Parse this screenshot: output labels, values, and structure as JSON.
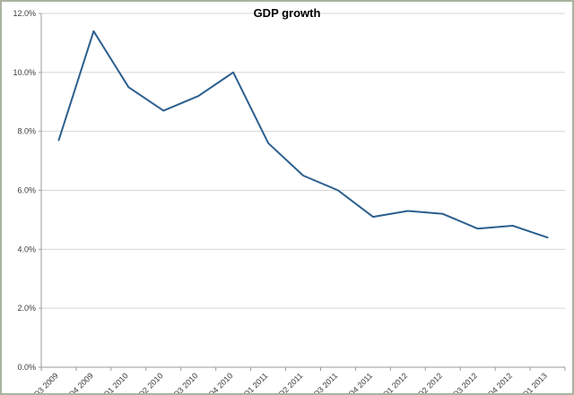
{
  "chart": {
    "title": "GDP growth"
  },
  "colors": {
    "line": "#2c5f8e",
    "frame": "#a9b3a0",
    "grid": "#d6d6d6",
    "axis": "#9b9b9b",
    "tick": "#9b9b9b",
    "label": "#3b3b3b"
  },
  "chart_data": {
    "type": "line",
    "title": "GDP growth",
    "categories": [
      "Q3 2009",
      "Q4 2009",
      "Q1 2010",
      "Q2 2010",
      "Q3 2010",
      "Q4 2010",
      "Q1 2011",
      "Q2 2011",
      "Q3 2011",
      "Q4 2011",
      "Q1 2012",
      "Q2 2012",
      "Q3 2012",
      "Q4 2012",
      "Q1 2013"
    ],
    "series": [
      {
        "name": "GDP growth",
        "values": [
          7.7,
          11.4,
          9.5,
          8.7,
          9.2,
          10.0,
          7.6,
          6.5,
          6.0,
          5.1,
          5.3,
          5.2,
          4.7,
          4.8,
          4.4
        ]
      }
    ],
    "xlabel": "",
    "ylabel": "",
    "ylim": [
      0,
      12
    ],
    "ytick_step": 2,
    "ytick_labels": [
      "0.0%",
      "2.0%",
      "4.0%",
      "6.0%",
      "8.0%",
      "10.0%",
      "12.0%"
    ],
    "grid": true,
    "legend": "none"
  }
}
